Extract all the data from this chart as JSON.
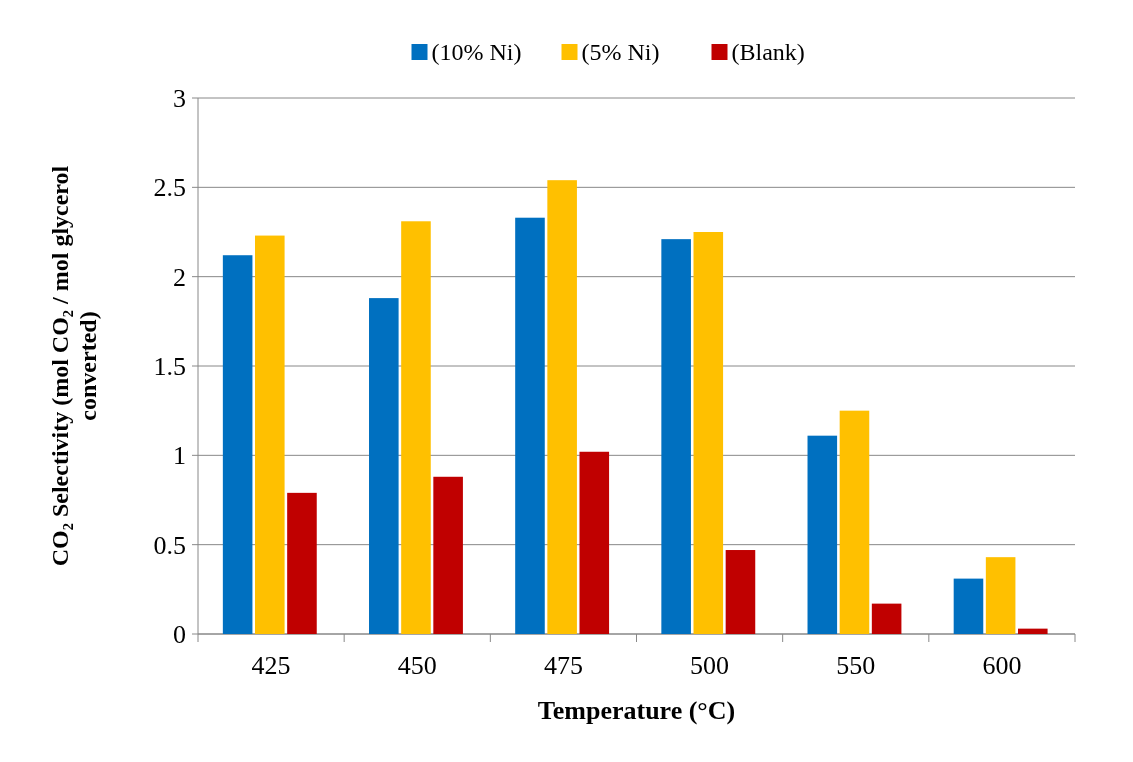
{
  "chart_data": {
    "type": "bar",
    "xlabel": "Temperature (°C)",
    "ylabel": "CO₂ Selectivity (mol CO₂ / mol glycerol converted)",
    "categories": [
      "425",
      "450",
      "475",
      "500",
      "550",
      "600"
    ],
    "series": [
      {
        "name": "(10% Ni)",
        "color": "#0070c0",
        "values": [
          2.12,
          1.88,
          2.33,
          2.21,
          1.11,
          0.31
        ]
      },
      {
        "name": "(5% Ni)",
        "color": "#ffc000",
        "values": [
          2.23,
          2.31,
          2.54,
          2.25,
          1.25,
          0.43
        ]
      },
      {
        "name": "(Blank)",
        "color": "#c00000",
        "values": [
          0.79,
          0.88,
          1.02,
          0.47,
          0.17,
          0.03
        ]
      }
    ],
    "ylim": [
      0,
      3
    ],
    "yticks": [
      0,
      0.5,
      1,
      1.5,
      2,
      2.5,
      3
    ],
    "grid": "y",
    "legend": "top"
  }
}
